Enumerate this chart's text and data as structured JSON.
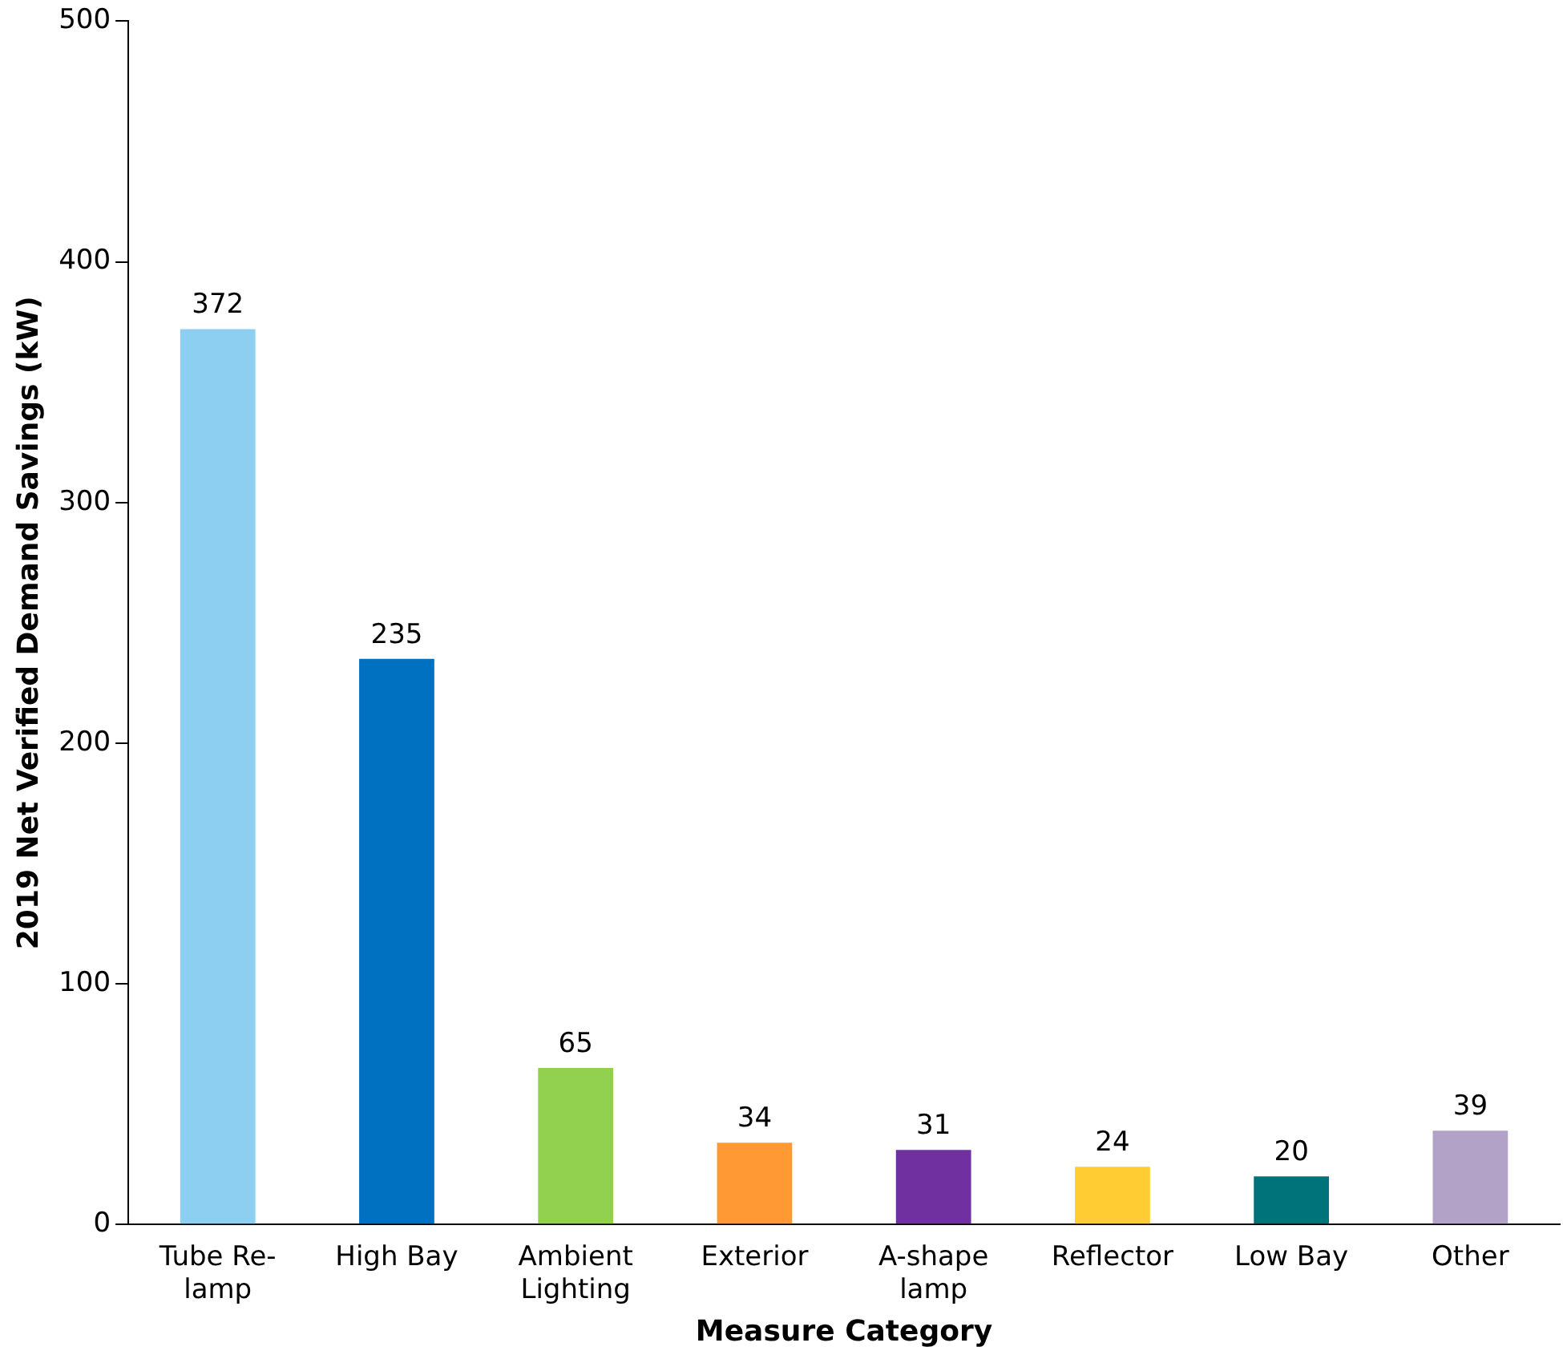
{
  "chart_data": {
    "type": "bar",
    "xlabel": "Measure Category",
    "ylabel": "2019 Net Verified Demand Savings (kW)",
    "categories": [
      "Tube Re-\nlamp",
      "High Bay",
      "Ambient\nLighting",
      "Exterior",
      "A-shape\nlamp",
      "Reflector",
      "Low Bay",
      "Other"
    ],
    "values": [
      372,
      235,
      65,
      34,
      31,
      24,
      20,
      39
    ],
    "colors": [
      "#8ccff0",
      "#0070c0",
      "#92d050",
      "#ff9933",
      "#7030a0",
      "#ffcc33",
      "#00737a",
      "#b3a2c7"
    ],
    "ylim": [
      0,
      500
    ],
    "yticks": [
      0,
      100,
      200,
      300,
      400,
      500
    ],
    "grid": false,
    "legend": false,
    "data_labels": true
  }
}
